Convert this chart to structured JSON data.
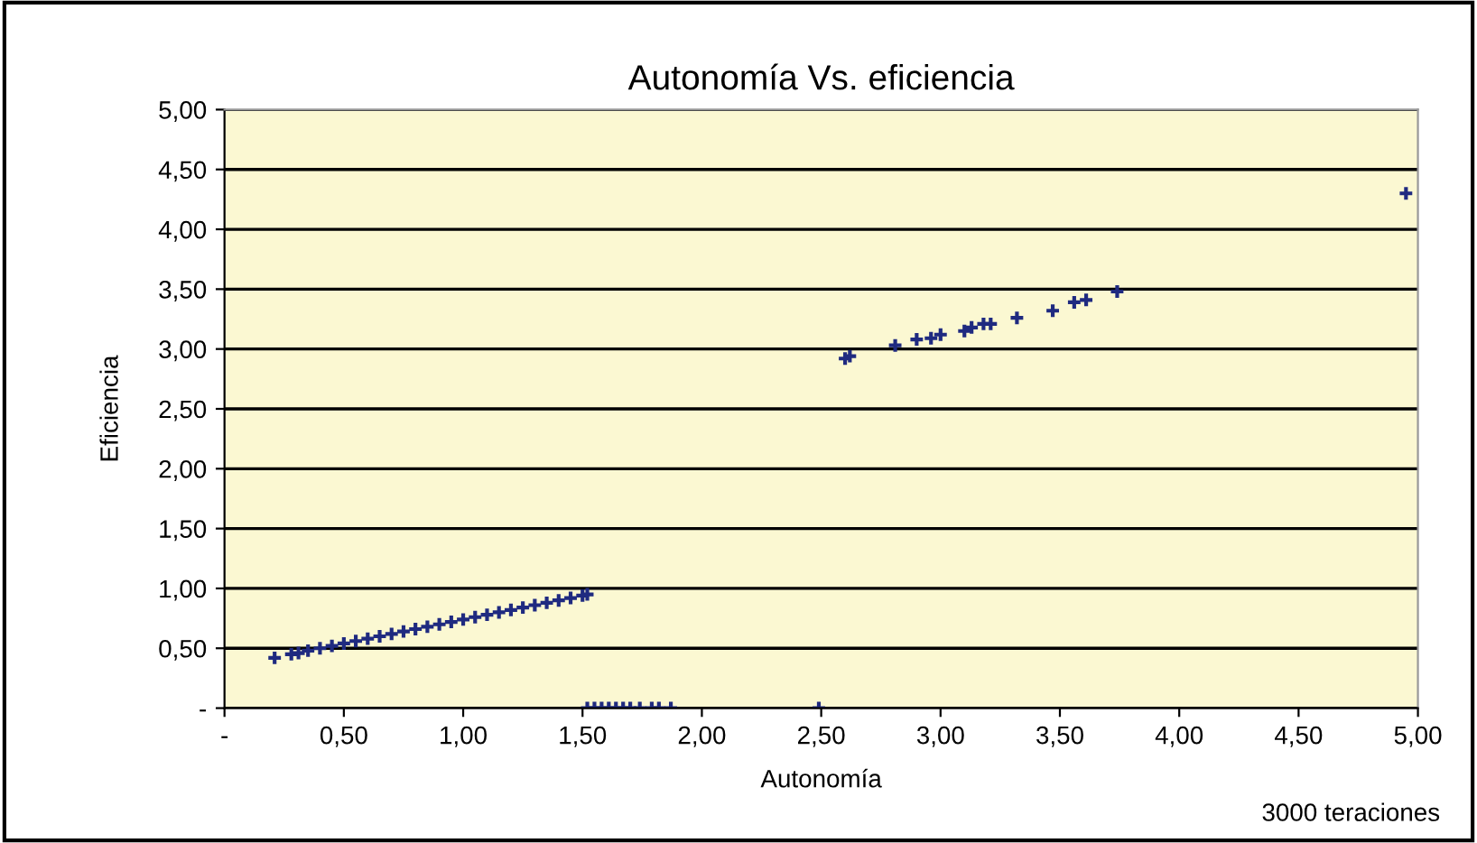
{
  "chart_data": {
    "type": "scatter",
    "title": "Autonomía Vs. eficiencia",
    "xlabel": "Autonomía",
    "ylabel": "Eficiencia",
    "annotations": [
      "3000 teraciones"
    ],
    "x": [
      0.21,
      0.28,
      0.31,
      0.35,
      0.4,
      0.45,
      0.5,
      0.55,
      0.6,
      0.65,
      0.7,
      0.75,
      0.8,
      0.85,
      0.9,
      0.95,
      1.0,
      1.05,
      1.1,
      1.15,
      1.2,
      1.25,
      1.3,
      1.35,
      1.4,
      1.45,
      1.5,
      1.52,
      1.52,
      1.55,
      1.58,
      1.61,
      1.64,
      1.67,
      1.7,
      1.74,
      1.79,
      1.82,
      1.87,
      2.49,
      2.6,
      2.62,
      2.81,
      2.9,
      2.96,
      3.0,
      3.1,
      3.13,
      3.18,
      3.21,
      3.32,
      3.47,
      3.56,
      3.61,
      3.74,
      4.95
    ],
    "series": [
      {
        "color": "#1f2a80",
        "values": [
          0.42,
          0.45,
          0.46,
          0.48,
          0.5,
          0.52,
          0.54,
          0.56,
          0.58,
          0.6,
          0.62,
          0.64,
          0.66,
          0.68,
          0.7,
          0.72,
          0.74,
          0.76,
          0.78,
          0.8,
          0.82,
          0.84,
          0.86,
          0.88,
          0.9,
          0.92,
          0.94,
          0.95,
          0,
          0,
          0,
          0,
          0,
          0,
          0,
          0,
          0,
          0,
          0,
          0,
          2.92,
          2.94,
          3.03,
          3.08,
          3.09,
          3.12,
          3.15,
          3.18,
          3.21,
          3.21,
          3.26,
          3.32,
          3.39,
          3.41,
          3.48,
          4.3
        ]
      }
    ],
    "xlim": [
      0,
      5
    ],
    "ylim": [
      0,
      5
    ],
    "xticks": [
      {
        "value": 0,
        "label": "-"
      },
      {
        "value": 0.5,
        "label": "0,50"
      },
      {
        "value": 1,
        "label": "1,00"
      },
      {
        "value": 1.5,
        "label": "1,50"
      },
      {
        "value": 2,
        "label": "2,00"
      },
      {
        "value": 2.5,
        "label": "2,50"
      },
      {
        "value": 3,
        "label": "3,00"
      },
      {
        "value": 3.5,
        "label": "3,50"
      },
      {
        "value": 4,
        "label": "4,00"
      },
      {
        "value": 4.5,
        "label": "4,50"
      },
      {
        "value": 5,
        "label": "5,00"
      }
    ],
    "yticks": [
      {
        "value": 0,
        "label": "-"
      },
      {
        "value": 0.5,
        "label": "0,50"
      },
      {
        "value": 1,
        "label": "1,00"
      },
      {
        "value": 1.5,
        "label": "1,50"
      },
      {
        "value": 2,
        "label": "2,00"
      },
      {
        "value": 2.5,
        "label": "2,50"
      },
      {
        "value": 3,
        "label": "3,00"
      },
      {
        "value": 3.5,
        "label": "3,50"
      },
      {
        "value": 4,
        "label": "4,00"
      },
      {
        "value": 4.5,
        "label": "4,50"
      },
      {
        "value": 5,
        "label": "5,00"
      }
    ],
    "grid": "y",
    "marker": "cross",
    "legend": false
  }
}
